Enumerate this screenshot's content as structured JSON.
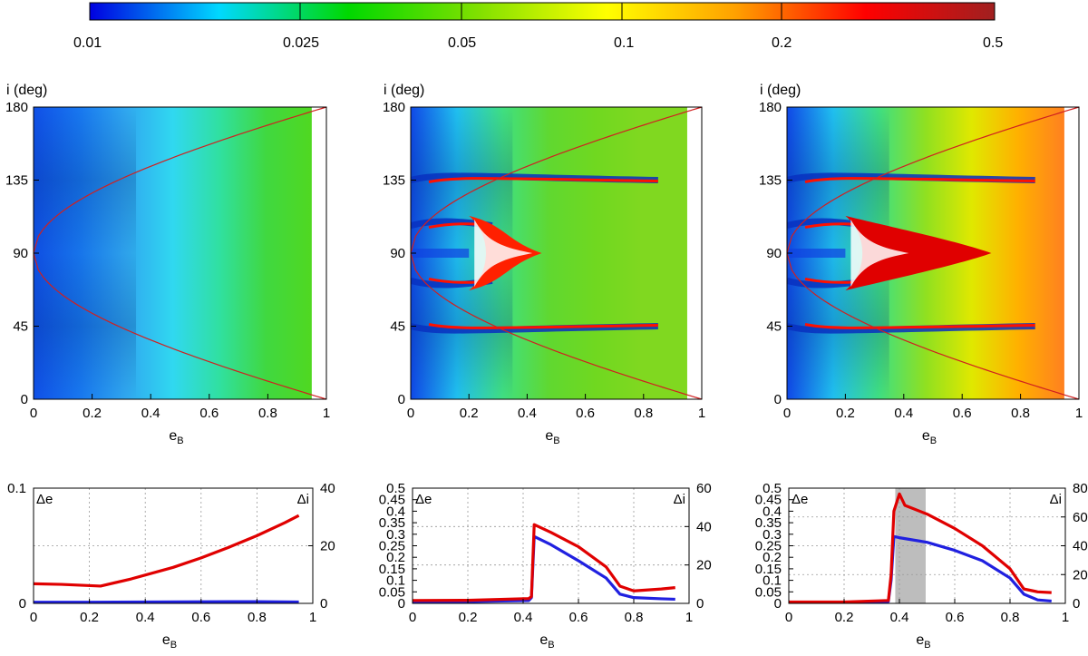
{
  "colorbar": {
    "ticks": [
      "0.01",
      "0.025",
      "0.05",
      "0.1",
      "0.2",
      "0.5"
    ],
    "stops": [
      "#0000e0",
      "#00d8ff",
      "#00d800",
      "#80e000",
      "#ffff00",
      "#ffa000",
      "#ff0000",
      "#a02020"
    ]
  },
  "chart_data": [
    {
      "type": "heatmap",
      "id": "map-1",
      "xlabel": "e",
      "xlabel_sub": "B",
      "ylabel": "i (deg)",
      "xlim": [
        0,
        1
      ],
      "ylim": [
        0,
        180
      ],
      "xticks": [
        "0",
        "0.2",
        "0.4",
        "0.6",
        "0.8",
        "1"
      ],
      "yticks": [
        "0",
        "45",
        "90",
        "135",
        "180"
      ],
      "base_colors": [
        "#1050e8",
        "#1878f0",
        "#30a8f0",
        "#30d8f0",
        "#30e0a0",
        "#40d840",
        "#50d820"
      ],
      "bands": [],
      "red_curve": "libration separatrix from (0,90) to (1,0) and (1,180)"
    },
    {
      "type": "heatmap",
      "id": "map-2",
      "xlabel": "e",
      "xlabel_sub": "B",
      "ylabel": "i (deg)",
      "xlim": [
        0,
        1
      ],
      "ylim": [
        0,
        180
      ],
      "xticks": [
        "0",
        "0.2",
        "0.4",
        "0.6",
        "0.8",
        "1"
      ],
      "yticks": [
        "0",
        "45",
        "90",
        "135",
        "180"
      ],
      "base_colors": [
        "#1048e8",
        "#20c0f0",
        "#40e080",
        "#60d830",
        "#70d820",
        "#80d820",
        "#80d820"
      ],
      "bands": [
        45,
        73,
        107,
        135
      ],
      "red_core": {
        "x_end": 0.45,
        "color": "#ff2000"
      }
    },
    {
      "type": "heatmap",
      "id": "map-3",
      "xlabel": "e",
      "xlabel_sub": "B",
      "ylabel": "i (deg)",
      "xlim": [
        0,
        1
      ],
      "ylim": [
        0,
        180
      ],
      "xticks": [
        "0",
        "0.2",
        "0.4",
        "0.6",
        "0.8",
        "1"
      ],
      "yticks": [
        "0",
        "45",
        "90",
        "135",
        "180"
      ],
      "base_colors": [
        "#1048e8",
        "#20c0f0",
        "#40e080",
        "#90e020",
        "#e0e800",
        "#ffb000",
        "#ff8020"
      ],
      "bands": [
        45,
        73,
        107,
        135
      ],
      "red_core": {
        "x_end": 0.7,
        "color": "#e00000"
      }
    },
    {
      "type": "line",
      "id": "plot-1",
      "xlabel": "e",
      "xlabel_sub": "B",
      "left_label": "Δe",
      "right_label": "Δi",
      "xlim": [
        0,
        1
      ],
      "ylim_left": [
        0,
        0.1
      ],
      "ylim_right": [
        0,
        40
      ],
      "xticks": [
        "0",
        "0.2",
        "0.4",
        "0.6",
        "0.8",
        "1"
      ],
      "yticks_left": [
        "0",
        "0.1"
      ],
      "yticks_left_values": [
        0,
        0.1
      ],
      "yticks_right": [
        "0",
        "20",
        "40"
      ],
      "yticks_right_values": [
        0,
        20,
        40
      ],
      "series": [
        {
          "name": "Δe",
          "color": "#2020e0",
          "axis": "left",
          "x": [
            0,
            0.2,
            0.4,
            0.6,
            0.8,
            0.95
          ],
          "y": [
            0.001,
            0.001,
            0.0012,
            0.0014,
            0.0015,
            0.0012
          ]
        },
        {
          "name": "Δi",
          "color": "#e00000",
          "axis": "right",
          "x": [
            0,
            0.1,
            0.24,
            0.35,
            0.5,
            0.6,
            0.7,
            0.8,
            0.9,
            0.95
          ],
          "y": [
            6.8,
            6.6,
            6.0,
            8.5,
            12.5,
            15.8,
            19.5,
            23.5,
            28,
            30.5
          ]
        }
      ],
      "shade": null
    },
    {
      "type": "line",
      "id": "plot-2",
      "xlabel": "e",
      "xlabel_sub": "B",
      "left_label": "Δe",
      "right_label": "Δi",
      "xlim": [
        0,
        1
      ],
      "ylim_left": [
        0,
        0.5
      ],
      "ylim_right": [
        0,
        60
      ],
      "xticks": [
        "0",
        "0.2",
        "0.4",
        "0.6",
        "0.8",
        "1"
      ],
      "yticks_left": [
        "0",
        "0.05",
        "0.1",
        "0.15",
        "0.2",
        "0.25",
        "0.3",
        "0.35",
        "0.4",
        "0.45",
        "0.5"
      ],
      "yticks_left_values": [
        0,
        0.05,
        0.1,
        0.15,
        0.2,
        0.25,
        0.3,
        0.35,
        0.4,
        0.45,
        0.5
      ],
      "yticks_right": [
        "0",
        "20",
        "40",
        "60"
      ],
      "yticks_right_values": [
        0,
        20,
        40,
        60
      ],
      "series": [
        {
          "name": "Δe",
          "color": "#2020e0",
          "axis": "left",
          "x": [
            0,
            0.2,
            0.42,
            0.43,
            0.44,
            0.5,
            0.6,
            0.7,
            0.75,
            0.8,
            0.9,
            0.95
          ],
          "y": [
            0.008,
            0.008,
            0.012,
            0.025,
            0.29,
            0.255,
            0.185,
            0.11,
            0.04,
            0.025,
            0.02,
            0.018
          ]
        },
        {
          "name": "Δi",
          "color": "#e00000",
          "axis": "right",
          "x": [
            0,
            0.2,
            0.42,
            0.43,
            0.44,
            0.5,
            0.6,
            0.7,
            0.75,
            0.8,
            0.9,
            0.95
          ],
          "y": [
            1.5,
            1.6,
            2.5,
            3.5,
            41,
            37,
            29.5,
            19,
            9,
            6.5,
            7.5,
            8.2
          ]
        }
      ],
      "shade": null
    },
    {
      "type": "line",
      "id": "plot-3",
      "xlabel": "e",
      "xlabel_sub": "B",
      "left_label": "Δe",
      "right_label": "Δi",
      "xlim": [
        0,
        1
      ],
      "ylim_left": [
        0,
        0.5
      ],
      "ylim_right": [
        0,
        80
      ],
      "xticks": [
        "0",
        "0.2",
        "0.4",
        "0.6",
        "0.8",
        "1"
      ],
      "yticks_left": [
        "0",
        "0.05",
        "0.1",
        "0.15",
        "0.2",
        "0.25",
        "0.3",
        "0.35",
        "0.4",
        "0.45",
        "0.5"
      ],
      "yticks_left_values": [
        0,
        0.05,
        0.1,
        0.15,
        0.2,
        0.25,
        0.3,
        0.35,
        0.4,
        0.45,
        0.5
      ],
      "yticks_right": [
        "0",
        "20",
        "40",
        "60",
        "80"
      ],
      "yticks_right_values": [
        0,
        20,
        40,
        60,
        80
      ],
      "series": [
        {
          "name": "Δe",
          "color": "#2020e0",
          "axis": "left",
          "x": [
            0,
            0.2,
            0.36,
            0.37,
            0.38,
            0.4,
            0.5,
            0.6,
            0.7,
            0.8,
            0.85,
            0.9,
            0.95
          ],
          "y": [
            0.005,
            0.005,
            0.008,
            0.1,
            0.29,
            0.285,
            0.265,
            0.23,
            0.185,
            0.11,
            0.04,
            0.015,
            0.01
          ]
        },
        {
          "name": "Δi",
          "color": "#e00000",
          "axis": "right",
          "x": [
            0,
            0.2,
            0.36,
            0.37,
            0.38,
            0.4,
            0.42,
            0.5,
            0.6,
            0.7,
            0.8,
            0.85,
            0.9,
            0.95
          ],
          "y": [
            1,
            1,
            2,
            20,
            64,
            76,
            68,
            62,
            52,
            40,
            24,
            10,
            8,
            7.5
          ]
        }
      ],
      "shade": {
        "x0": 0.385,
        "x1": 0.495,
        "color": "#bdbdbd"
      }
    }
  ]
}
